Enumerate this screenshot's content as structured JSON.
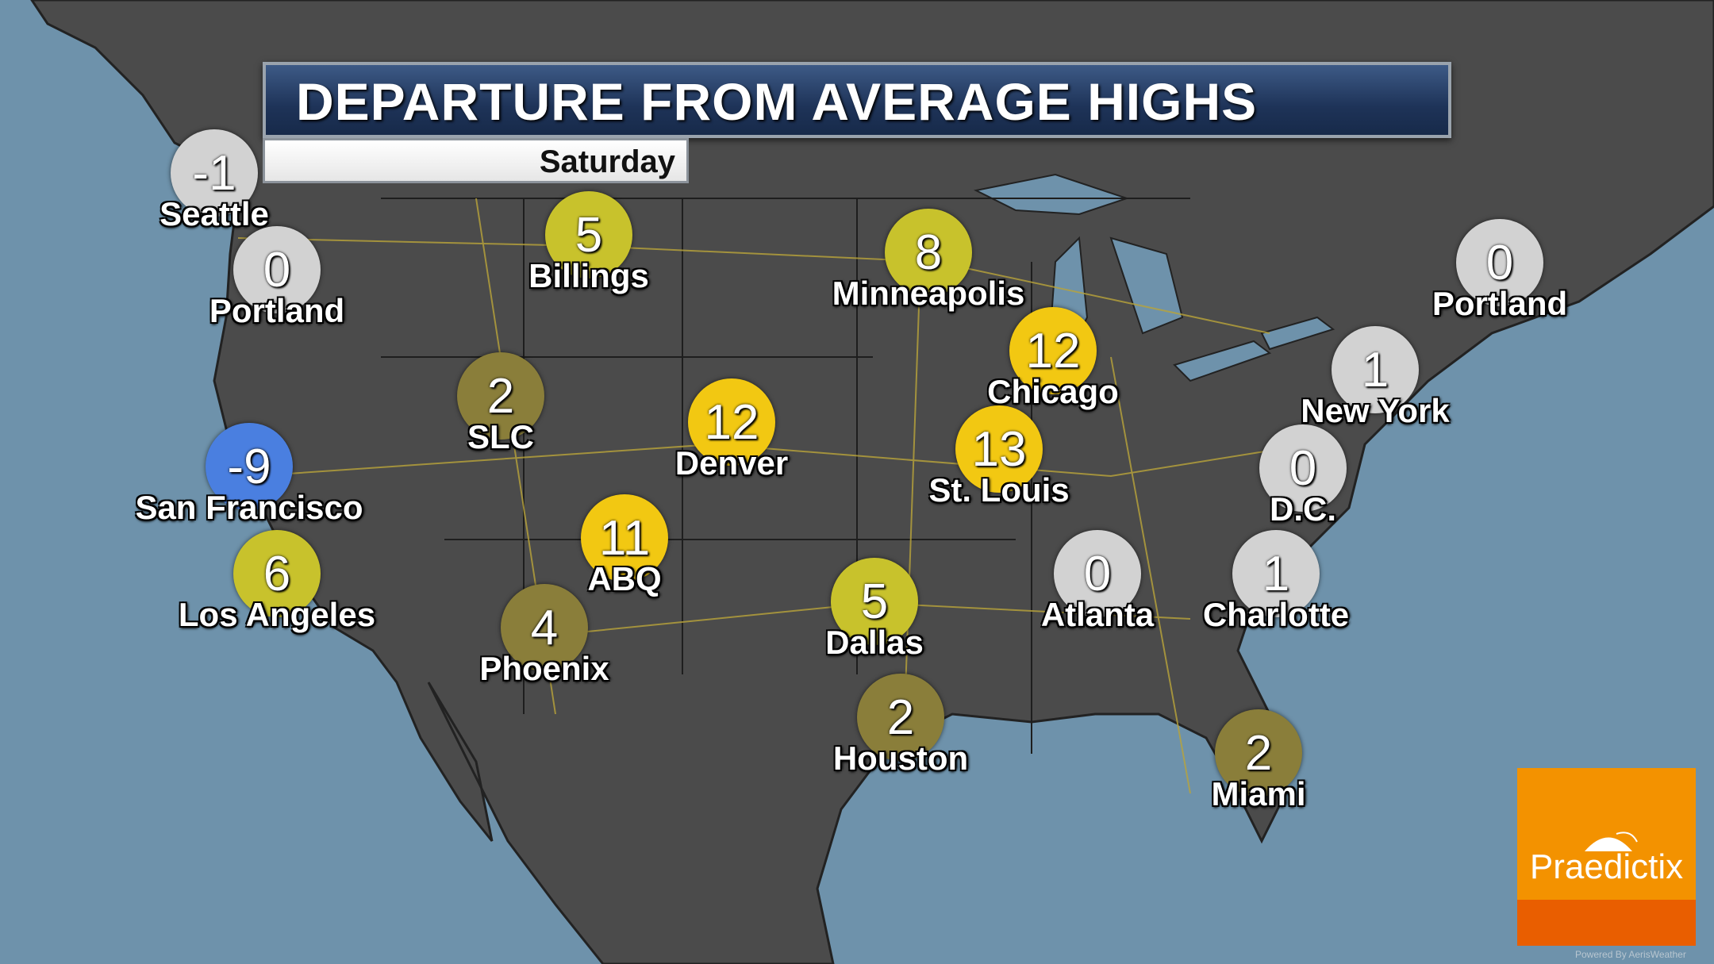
{
  "title": "DEPARTURE FROM AVERAGE HIGHS",
  "subtitle": "Saturday",
  "legend_colors": {
    "below_average": "#4a7fe0",
    "near_average": "#d2d2d2",
    "slightly_above": "#8a7e3a",
    "above": "#c8c22c",
    "well_above": "#f2c812"
  },
  "cities": [
    {
      "name": "Seattle",
      "value": "-1",
      "category": "near_average"
    },
    {
      "name": "Portland",
      "value": "0",
      "category": "near_average"
    },
    {
      "name": "Billings",
      "value": "5",
      "category": "above"
    },
    {
      "name": "Minneapolis",
      "value": "8",
      "category": "above"
    },
    {
      "name": "Portland",
      "value": "0",
      "category": "near_average"
    },
    {
      "name": "SLC",
      "value": "2",
      "category": "slightly_above"
    },
    {
      "name": "Denver",
      "value": "12",
      "category": "well_above"
    },
    {
      "name": "Chicago",
      "value": "12",
      "category": "well_above"
    },
    {
      "name": "St. Louis",
      "value": "13",
      "category": "well_above"
    },
    {
      "name": "New York",
      "value": "1",
      "category": "near_average"
    },
    {
      "name": "San Francisco",
      "value": "-9",
      "category": "below_average"
    },
    {
      "name": "D.C.",
      "value": "0",
      "category": "near_average"
    },
    {
      "name": "ABQ",
      "value": "11",
      "category": "well_above"
    },
    {
      "name": "Los Angeles",
      "value": "6",
      "category": "above"
    },
    {
      "name": "Atlanta",
      "value": "0",
      "category": "near_average"
    },
    {
      "name": "Charlotte",
      "value": "1",
      "category": "near_average"
    },
    {
      "name": "Dallas",
      "value": "5",
      "category": "above"
    },
    {
      "name": "Phoenix",
      "value": "4",
      "category": "slightly_above"
    },
    {
      "name": "Houston",
      "value": "2",
      "category": "slightly_above"
    },
    {
      "name": "Miami",
      "value": "2",
      "category": "slightly_above"
    }
  ],
  "logo": {
    "text": "Praedictix",
    "powered_by": "Powered By AerisWeather"
  },
  "colors": {
    "ocean": "#6e92ab",
    "land": "#4a4a4a",
    "roads": "#c9b23a",
    "logo_orange": "#f39200",
    "logo_dark_orange": "#e95e00",
    "title_bar": "#1e3358"
  }
}
